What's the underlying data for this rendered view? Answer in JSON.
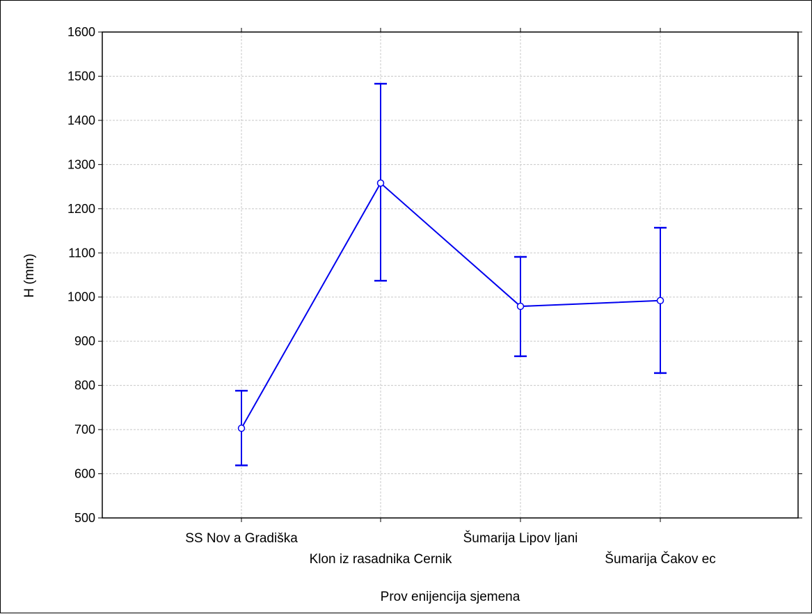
{
  "chart_data": {
    "type": "line",
    "xlabel": "Prov enijencija sjemena",
    "ylabel": "H (mm)",
    "categories": [
      "SS Nov a Gradiška",
      "Klon iz rasadnika Cernik",
      "Šumarija Lipov ljani",
      "Šumarija Čakov ec"
    ],
    "series": [
      {
        "values": [
          703,
          1258,
          979,
          992
        ],
        "error_low": [
          619,
          1037,
          866,
          828
        ],
        "error_high": [
          788,
          1483,
          1091,
          1157
        ],
        "color": "#0000ee"
      }
    ],
    "ylim": [
      500,
      1600
    ],
    "yticks": [
      500,
      600,
      700,
      800,
      900,
      1000,
      1100,
      1200,
      1300,
      1400,
      1500,
      1600
    ],
    "grid": true,
    "legend": "none"
  }
}
